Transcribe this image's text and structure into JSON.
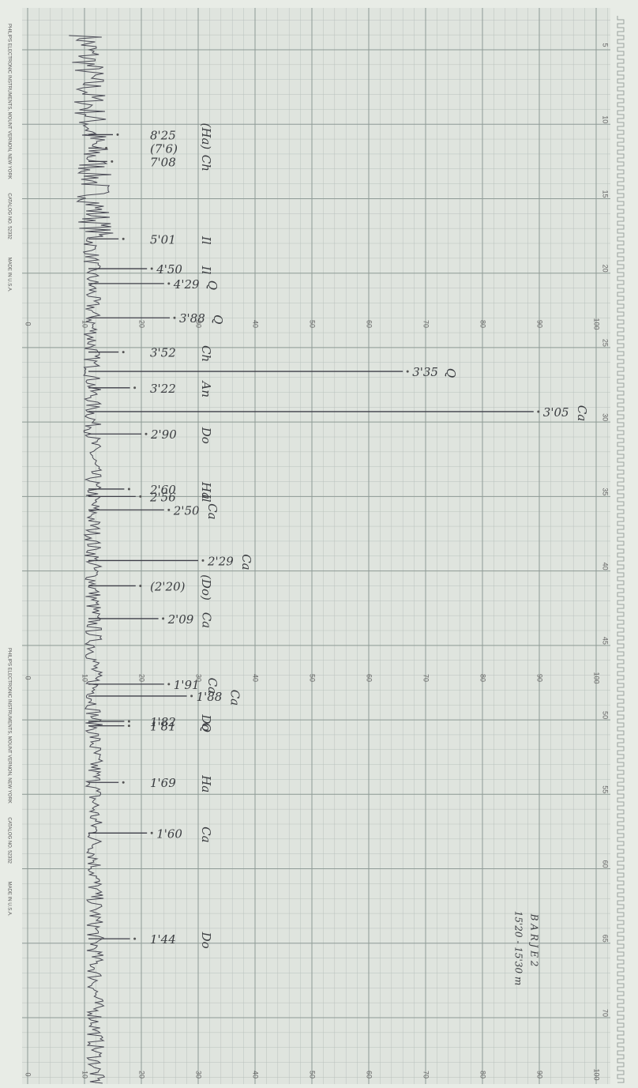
{
  "side_texts": [
    "PHILIPS ELECTRONIC INSTRUMENTS, MOUNT VERNON, NEW YORK",
    "CATALOG NO. 52332",
    "MADE IN U.S.A."
  ],
  "sample": {
    "name": "B A R J E 2",
    "depth": "15'20 - 15'30 m"
  },
  "intensity_lim": [
    0,
    100
  ],
  "intensity_ticks": [
    0,
    10,
    20,
    30,
    40,
    50,
    60,
    70,
    80,
    90,
    100
  ],
  "two_theta_lim": [
    5,
    70
  ],
  "two_theta_ticks": [
    5,
    10,
    15,
    20,
    25,
    30,
    35,
    40,
    45,
    50,
    55,
    60,
    65,
    70
  ],
  "peaks": [
    {
      "d": "8'25",
      "mineral": "(Ha)",
      "two_theta": 10.7,
      "intensity": 15
    },
    {
      "d": "(7'6)",
      "two_theta": 11.6,
      "intensity": 13
    },
    {
      "d": "7'08",
      "mineral": "Ch",
      "two_theta": 12.5,
      "intensity": 14
    },
    {
      "d": "5'01",
      "mineral": "Il",
      "two_theta": 17.7,
      "intensity": 16
    },
    {
      "d": "4'50",
      "mineral": "Il",
      "two_theta": 19.7,
      "intensity": 21
    },
    {
      "d": "4'29",
      "mineral": "Q",
      "two_theta": 20.7,
      "intensity": 24
    },
    {
      "d": "3'88",
      "mineral": "Q",
      "two_theta": 23.0,
      "intensity": 25
    },
    {
      "d": "3'52",
      "mineral": "Ch",
      "two_theta": 25.3,
      "intensity": 16
    },
    {
      "d": "3'35",
      "mineral": "Q",
      "two_theta": 26.6,
      "intensity": 66
    },
    {
      "d": "3'22",
      "mineral": "An",
      "two_theta": 27.7,
      "intensity": 18
    },
    {
      "d": "3'05",
      "mineral": "Ca",
      "two_theta": 29.3,
      "intensity": 89
    },
    {
      "d": "2'90",
      "mineral": "Do",
      "two_theta": 30.8,
      "intensity": 20
    },
    {
      "d": "2'60",
      "mineral": "Ha",
      "two_theta": 34.5,
      "intensity": 17
    },
    {
      "d": "2'56",
      "mineral": "Il",
      "two_theta": 35.0,
      "intensity": 19
    },
    {
      "d": "2'50",
      "mineral": "Ca",
      "two_theta": 35.9,
      "intensity": 24
    },
    {
      "d": "2'29",
      "mineral": "Ca",
      "two_theta": 39.3,
      "intensity": 30
    },
    {
      "d": "(2'20)",
      "mineral": "(Do)",
      "two_theta": 41.0,
      "intensity": 19
    },
    {
      "d": "2'09",
      "mineral": "Ca",
      "two_theta": 43.2,
      "intensity": 23
    },
    {
      "d": "1'91",
      "mineral": "Ca",
      "two_theta": 47.6,
      "intensity": 24
    },
    {
      "d": "1'88",
      "mineral": "Ca",
      "two_theta": 48.4,
      "intensity": 28
    },
    {
      "d": "1'82",
      "mineral": "Do",
      "two_theta": 50.1,
      "intensity": 17
    },
    {
      "d": "1'81",
      "mineral": "Q",
      "two_theta": 50.4,
      "intensity": 17
    },
    {
      "d": "1'69",
      "mineral": "Ha",
      "two_theta": 54.2,
      "intensity": 16
    },
    {
      "d": "1'60",
      "mineral": "Ca",
      "two_theta": 57.6,
      "intensity": 21
    },
    {
      "d": "1'44",
      "mineral": "Do",
      "two_theta": 64.7,
      "intensity": 18
    }
  ]
}
